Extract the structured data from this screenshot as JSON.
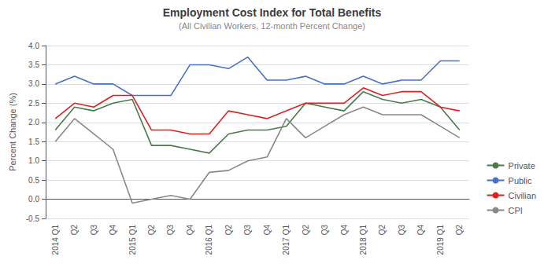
{
  "chart_data": {
    "type": "line",
    "title": "Employment Cost Index for Total Benefits",
    "subtitle": "(All Civilian Workers, 12-month Percent Change)",
    "y_label": "Percent Change (%)",
    "categories": [
      "2014 Q1",
      "Q2",
      "Q3",
      "Q4",
      "2015 Q1",
      "Q2",
      "Q3",
      "Q4",
      "2016 Q1",
      "Q2",
      "Q3",
      "Q4",
      "2017 Q1",
      "Q2",
      "Q3",
      "Q4",
      "2018 Q1",
      "Q2",
      "Q3",
      "Q4",
      "2019 Q1",
      "Q2"
    ],
    "series": [
      {
        "name": "Private",
        "color": "#4a7a4a",
        "values": [
          1.8,
          2.4,
          2.3,
          2.5,
          2.6,
          1.4,
          1.4,
          1.3,
          1.2,
          1.7,
          1.8,
          1.8,
          1.9,
          2.5,
          2.4,
          2.3,
          2.8,
          2.6,
          2.5,
          2.6,
          2.4,
          1.8
        ]
      },
      {
        "name": "Public",
        "color": "#4472c4",
        "values": [
          3.0,
          3.2,
          3.0,
          3.0,
          2.7,
          2.7,
          2.7,
          3.5,
          3.5,
          3.4,
          3.7,
          3.1,
          3.1,
          3.2,
          3.0,
          3.0,
          3.2,
          3.0,
          3.1,
          3.1,
          3.6,
          3.6
        ]
      },
      {
        "name": "Civilian",
        "color": "#dd2020",
        "values": [
          2.1,
          2.5,
          2.4,
          2.7,
          2.7,
          1.8,
          1.8,
          1.7,
          1.7,
          2.3,
          2.2,
          2.1,
          2.3,
          2.5,
          2.5,
          2.5,
          2.9,
          2.7,
          2.8,
          2.8,
          2.4,
          2.3
        ]
      },
      {
        "name": "CPI",
        "color": "#888888",
        "values": [
          1.5,
          2.1,
          1.7,
          1.3,
          -0.1,
          0.0,
          0.1,
          0.0,
          0.7,
          0.75,
          1.0,
          1.1,
          2.1,
          1.6,
          1.9,
          2.2,
          2.4,
          2.2,
          2.2,
          2.2,
          1.9,
          1.6
        ]
      }
    ],
    "ylim": [
      -0.5,
      4.0
    ],
    "yticks": [
      -0.5,
      {
        "value": 0,
        "label": "0.0"
      },
      0.5,
      {
        "value": 1,
        "label": "1.0"
      },
      1.5,
      {
        "value": 2,
        "label": "2.0"
      },
      2.5,
      {
        "value": 3,
        "label": "3.0"
      },
      3.5,
      {
        "value": 4,
        "label": "4.0"
      }
    ],
    "grid": true,
    "legend": "lower right"
  }
}
